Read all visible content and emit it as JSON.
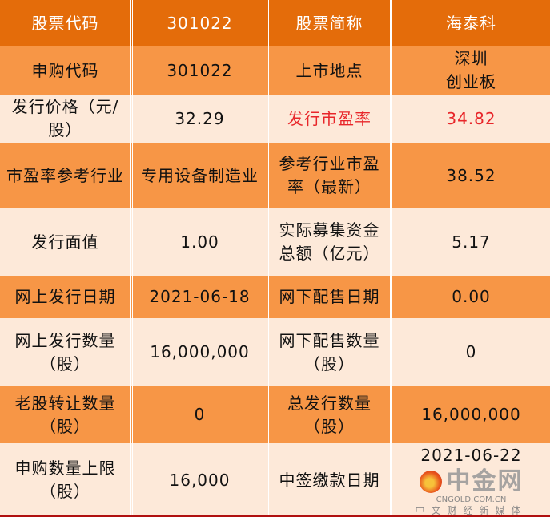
{
  "rows": [
    {
      "style": "h",
      "cells": [
        "股票代码",
        "301022",
        "股票简称",
        "海泰科"
      ]
    },
    {
      "style": "o",
      "cells": [
        "申购代码",
        "301022",
        "上市地点",
        "深圳\n创业板"
      ]
    },
    {
      "style": "p",
      "cells": [
        "发行价格（元/股）",
        "32.29",
        "发行市盈率",
        "34.82"
      ]
    },
    {
      "style": "o",
      "cells": [
        "市盈率参考行业",
        "专用设备制造业",
        "参考行业市盈率（最新）",
        "38.52"
      ]
    },
    {
      "style": "p",
      "cells": [
        "发行面值",
        "1.00",
        "实际募集资金总额（亿元）",
        "5.17"
      ]
    },
    {
      "style": "o",
      "cells": [
        "网上发行日期",
        "2021-06-18",
        "网下配售日期",
        "0.00"
      ]
    },
    {
      "style": "p",
      "cells": [
        "网上发行数量（股）",
        "16,000,000",
        "网下配售数量（股）",
        "0"
      ]
    },
    {
      "style": "o",
      "cells": [
        "老股转让数量（股）",
        "0",
        "总发行数量（股）",
        "16,000,000"
      ]
    },
    {
      "style": "p",
      "cells": [
        "申购数量上限（股）",
        "16,000",
        "中签缴款日期",
        "2021-06-22"
      ]
    }
  ],
  "highlight_color": "#E8262A",
  "watermark": {
    "brand": "中金网",
    "url": "CNGOLD.COM.CN",
    "tagline": "中文财经新媒体"
  }
}
